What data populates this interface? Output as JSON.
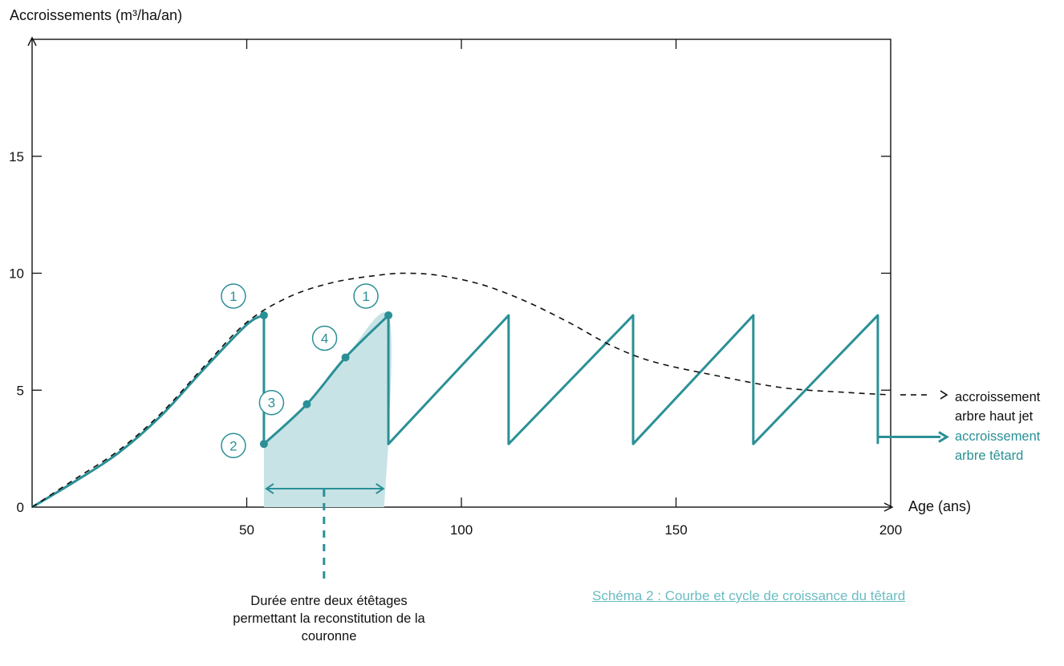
{
  "chart_data": {
    "type": "line",
    "ylabel": "Accroissements (m³/ha/an)",
    "xlabel": "Age (ans)",
    "xlim": [
      0,
      200
    ],
    "ylim": [
      0,
      20
    ],
    "x_ticks": [
      "50",
      "100",
      "150",
      "200"
    ],
    "y_ticks": [
      "0",
      "5",
      "10",
      "15"
    ],
    "grid": false,
    "colors": {
      "pollard": "#2a9096",
      "high_forest": "#111111",
      "shade": "#c8e3e6",
      "caption": "#6bbcc2"
    },
    "series": [
      {
        "name": "accroissement arbre haut jet",
        "style": "dashed",
        "x": [
          0,
          10,
          20,
          30,
          40,
          50,
          60,
          70,
          80,
          87,
          95,
          105,
          115,
          125,
          135,
          145,
          160,
          175,
          190,
          200
        ],
        "y": [
          0,
          1.2,
          2.4,
          4.0,
          6.0,
          7.9,
          9.0,
          9.6,
          9.9,
          10.0,
          9.9,
          9.5,
          8.8,
          7.9,
          6.9,
          6.2,
          5.6,
          5.1,
          4.9,
          4.8
        ]
      },
      {
        "name": "accroissement arbre têtard",
        "style": "solid",
        "x": [
          0,
          10,
          20,
          30,
          40,
          50,
          54,
          54,
          64,
          73,
          83,
          83,
          111,
          111,
          140,
          140,
          168,
          168,
          197,
          197
        ],
        "y": [
          0,
          1.1,
          2.3,
          3.9,
          5.9,
          7.8,
          8.2,
          2.7,
          4.4,
          6.4,
          8.2,
          2.7,
          8.2,
          2.7,
          8.2,
          2.7,
          8.2,
          2.7,
          8.2,
          2.7
        ]
      }
    ],
    "highlight_interval": {
      "x": [
        54,
        82
      ]
    },
    "markers": [
      {
        "label": "1",
        "x": 54,
        "y": 8.2
      },
      {
        "label": "2",
        "x": 54,
        "y": 2.7
      },
      {
        "label": "3",
        "x": 64,
        "y": 4.4
      },
      {
        "label": "4",
        "x": 73,
        "y": 6.4
      },
      {
        "label": "1",
        "x": 83,
        "y": 8.2
      }
    ],
    "legend": {
      "placement": "right",
      "haut_jet": "accroissement\narbre haut jet",
      "tetard": "accroissement\narbre têtard"
    }
  },
  "annotation": "Durée entre deux étêtages permettant la reconstitution de la couronne",
  "caption": "Schéma 2 : Courbe et cycle de croissance du têtard"
}
